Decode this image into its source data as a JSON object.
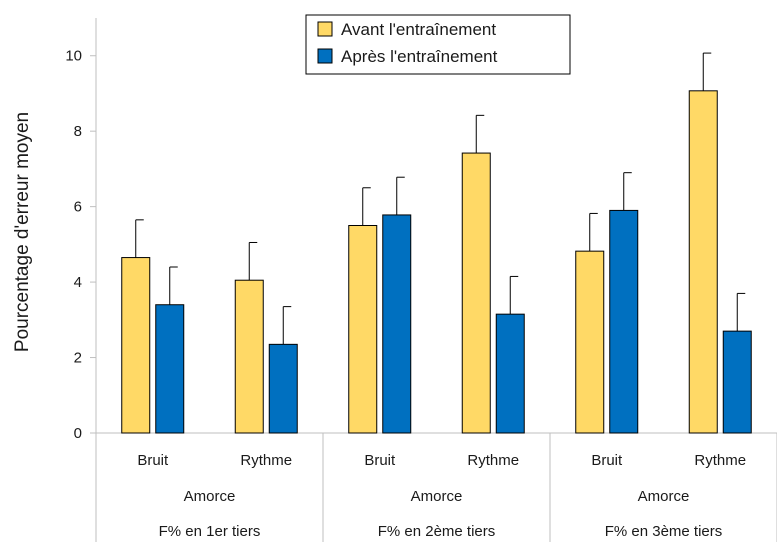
{
  "chart_data": {
    "type": "bar",
    "ylabel": "Pourcentage d'erreur  moyen",
    "ylim": [
      0,
      11
    ],
    "yticks": [
      0,
      2,
      4,
      6,
      8,
      10
    ],
    "grid": false,
    "legend_position": "top-center",
    "categories": [
      "Bruit",
      "Rythme",
      "Bruit",
      "Rythme",
      "Bruit",
      "Rythme"
    ],
    "group_label_level2": [
      "Amorce",
      "Amorce",
      "Amorce"
    ],
    "group_label_level3": [
      "F% en 1er tiers",
      "F% en 2ème tiers",
      "F% en 3ème tiers"
    ],
    "series": [
      {
        "name": "Avant l'entraînement",
        "color": "#FFD966",
        "values": [
          4.65,
          4.05,
          5.5,
          7.42,
          4.82,
          9.07
        ],
        "error": [
          1.0,
          1.0,
          1.0,
          1.0,
          1.0,
          1.0
        ]
      },
      {
        "name": "Après l'entraînement",
        "color": "#0070C0",
        "values": [
          3.4,
          2.35,
          5.78,
          3.15,
          5.9,
          2.7
        ],
        "error": [
          1.0,
          1.0,
          1.0,
          1.0,
          1.0,
          1.0
        ]
      }
    ]
  }
}
